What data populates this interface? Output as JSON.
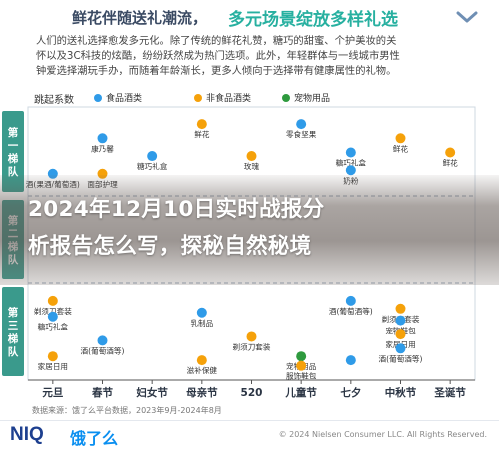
{
  "header": {
    "title_part1": "鲜花伴随送礼潮流，",
    "title_part2": "多元场景绽放多样礼选",
    "collapse_icon": "chevron-down-icon"
  },
  "intro": {
    "lines": [
      "人们的送礼选择愈发多元化。除了传统的鲜花礼赞，糖巧的甜蜜、个护美妆的关",
      "怀以及3C科技的炫酷，纷纷跃然成为热门选项。此外，年轻群体与一线城市男性",
      "钟爱选择潮玩手办，而随着年龄渐长，更多人倾向于选择带有健康属性的礼物。"
    ]
  },
  "colors": {
    "food": "#2f9be8",
    "nonfood": "#f5a10a",
    "pet": "#2e9a3e",
    "tier_bg": "#3a9a8c",
    "overlay_text": "#ffffff",
    "brand_niq": "#1d3f8f",
    "brand_ele": "#0a8ff0"
  },
  "chart_data": {
    "type": "scatter",
    "title": "",
    "ylabel": "跳起系数",
    "legend_position": "top",
    "categories": [
      "元旦",
      "春节",
      "妇女节",
      "母亲节",
      "520",
      "儿童节",
      "七夕",
      "中秋节",
      "圣诞节"
    ],
    "tiers": [
      {
        "name": "第一梯队",
        "chars": [
          "第",
          "一",
          "梯",
          "队"
        ]
      },
      {
        "name": "第二梯队",
        "chars": [
          "第",
          "二",
          "梯",
          "队"
        ]
      },
      {
        "name": "第三梯队",
        "chars": [
          "第",
          "三",
          "梯",
          "队"
        ]
      }
    ],
    "series": [
      {
        "name": "食品酒类",
        "key": "food"
      },
      {
        "name": "非食品酒类",
        "key": "nonfood"
      },
      {
        "name": "宠物用品",
        "key": "pet"
      }
    ],
    "points": [
      {
        "x": "母亲节",
        "tier": 1,
        "y": 0.9,
        "label": "鲜花",
        "s": "nonfood"
      },
      {
        "x": "儿童节",
        "tier": 1,
        "y": 0.9,
        "label": "零食坚果",
        "s": "food"
      },
      {
        "x": "春节",
        "tier": 1,
        "y": 0.7,
        "label": "康乃馨",
        "s": "food"
      },
      {
        "x": "中秋节",
        "tier": 1,
        "y": 0.7,
        "label": "鲜花",
        "s": "nonfood"
      },
      {
        "x": "妇女节",
        "tier": 1,
        "y": 0.45,
        "label": "糖巧礼盒",
        "s": "food"
      },
      {
        "x": "元旦",
        "tier": 1,
        "y": 0.2,
        "label": "酒(果酒/葡萄酒)",
        "s": "food"
      },
      {
        "x": "春节",
        "tier": 1,
        "y": 0.2,
        "label": "面部护理",
        "s": "nonfood"
      },
      {
        "x": "520",
        "tier": 1,
        "y": 0.45,
        "label": "玫瑰",
        "s": "nonfood"
      },
      {
        "x": "七夕",
        "tier": 1,
        "y": 0.5,
        "label": "糖巧礼盒",
        "s": "food"
      },
      {
        "x": "七夕",
        "tier": 1,
        "y": 0.25,
        "label": "奶粉",
        "s": "food"
      },
      {
        "x": "圣诞节",
        "tier": 1,
        "y": 0.5,
        "label": "鲜花",
        "s": "nonfood"
      },
      {
        "x": "元旦",
        "tier": 3,
        "y": 0.9,
        "label": "剃须刀套装",
        "s": "nonfood"
      },
      {
        "x": "元旦",
        "tier": 3,
        "y": 0.7,
        "label": "糖巧礼盒",
        "s": "food"
      },
      {
        "x": "春节",
        "tier": 3,
        "y": 0.4,
        "label": "酒(葡萄酒等)",
        "s": "food"
      },
      {
        "x": "母亲节",
        "tier": 3,
        "y": 0.75,
        "label": "乳制品",
        "s": "food"
      },
      {
        "x": "520",
        "tier": 3,
        "y": 0.45,
        "label": "剃须刀套装",
        "s": "nonfood"
      },
      {
        "x": "七夕",
        "tier": 3,
        "y": 0.9,
        "label": "酒(葡萄酒等)",
        "s": "food"
      },
      {
        "x": "中秋节",
        "tier": 3,
        "y": 0.8,
        "label": "剃须刀套装",
        "s": "nonfood"
      },
      {
        "x": "中秋节",
        "tier": 3,
        "y": 0.65,
        "label": "宠物鞋包",
        "s": "food"
      },
      {
        "x": "中秋节",
        "tier": 3,
        "y": 0.48,
        "label": "家居日用",
        "s": "nonfood"
      },
      {
        "x": "中秋节",
        "tier": 3,
        "y": 0.3,
        "label": "酒(葡萄酒等)",
        "s": "food"
      },
      {
        "x": "元旦",
        "tier": 3,
        "y": 0.2,
        "label": "家居日用",
        "s": "nonfood"
      },
      {
        "x": "母亲节",
        "tier": 3,
        "y": 0.15,
        "label": "滋补保健",
        "s": "nonfood"
      },
      {
        "x": "儿童节",
        "tier": 3,
        "y": 0.2,
        "label": "宠物用品",
        "s": "pet"
      },
      {
        "x": "儿童节",
        "tier": 3,
        "y": 0.08,
        "label": "服饰鞋包",
        "s": "nonfood"
      },
      {
        "x": "七夕",
        "tier": 3,
        "y": 0.15,
        "label": "",
        "s": "food"
      }
    ],
    "source_note": "数据来源：饿了么平台数据，2023年9月-2024年8月"
  },
  "legend": {
    "title": "跳起系数",
    "items": [
      {
        "label": "食品酒类"
      },
      {
        "label": "非食品酒类"
      },
      {
        "label": "宠物用品"
      }
    ]
  },
  "footer": {
    "brand1": "NIQ",
    "brand2": "饿了么",
    "copyright": "© 2024 Nielsen Consumer LLC. All Rights Reserved."
  },
  "overlay": {
    "line1": "2024年12月10日实时战报分",
    "line2": "析报告怎么写，探秘自然秘境"
  }
}
